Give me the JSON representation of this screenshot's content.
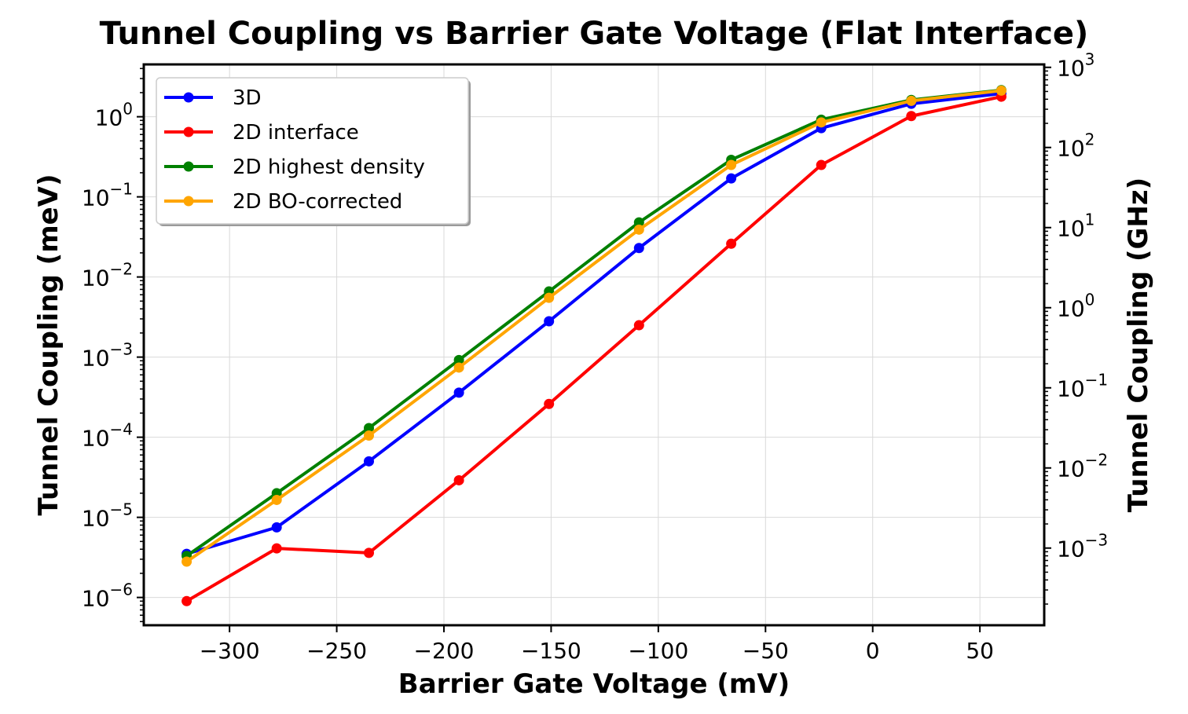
{
  "chart_data": {
    "type": "line",
    "title": "Tunnel Coupling vs Barrier Gate Voltage (Flat Interface)",
    "xlabel": "Barrier Gate Voltage (mV)",
    "ylabel": "Tunnel Coupling (meV)",
    "ylabel_right": "Tunnel Coupling (GHz)",
    "xlim": [
      -340,
      80
    ],
    "ylim": [
      4.5e-07,
      4.5
    ],
    "yscale": "log",
    "grid": true,
    "legend_position": "top-left",
    "x": [
      -320,
      -278,
      -235,
      -193,
      -151,
      -109,
      -66,
      -24,
      18,
      60
    ],
    "x_ticks": [
      {
        "value": -300,
        "label": "−300"
      },
      {
        "value": -250,
        "label": "−250"
      },
      {
        "value": -200,
        "label": "−200"
      },
      {
        "value": -150,
        "label": "−150"
      },
      {
        "value": -100,
        "label": "−100"
      },
      {
        "value": -50,
        "label": "−50"
      },
      {
        "value": 0,
        "label": "0"
      },
      {
        "value": 50,
        "label": "50"
      }
    ],
    "y_ticks": [
      {
        "exp": 0,
        "base": "10",
        "sup": "0"
      },
      {
        "exp": -1,
        "base": "10",
        "sup": "−1"
      },
      {
        "exp": -2,
        "base": "10",
        "sup": "−2"
      },
      {
        "exp": -3,
        "base": "10",
        "sup": "−3"
      },
      {
        "exp": -4,
        "base": "10",
        "sup": "−4"
      },
      {
        "exp": -5,
        "base": "10",
        "sup": "−5"
      },
      {
        "exp": -6,
        "base": "10",
        "sup": "−6"
      }
    ],
    "y_right_ticks": [
      {
        "exp": 3,
        "base": "10",
        "sup": "3"
      },
      {
        "exp": 2,
        "base": "10",
        "sup": "2"
      },
      {
        "exp": 1,
        "base": "10",
        "sup": "1"
      },
      {
        "exp": 0,
        "base": "10",
        "sup": "0"
      },
      {
        "exp": -1,
        "base": "10",
        "sup": "−1"
      },
      {
        "exp": -2,
        "base": "10",
        "sup": "−2"
      },
      {
        "exp": -3,
        "base": "10",
        "sup": "−3"
      }
    ],
    "series": [
      {
        "name": "3D",
        "color": "#0000ff",
        "values": [
          3.5e-06,
          7.5e-06,
          5e-05,
          0.00036,
          0.0028,
          0.023,
          0.17,
          0.72,
          1.45,
          1.95
        ]
      },
      {
        "name": "2D interface",
        "color": "#ff0000",
        "values": [
          9e-07,
          4.1e-06,
          3.6e-06,
          2.9e-05,
          0.00026,
          0.0025,
          0.026,
          0.25,
          1.02,
          1.78
        ]
      },
      {
        "name": "2D highest density",
        "color": "#008000",
        "values": [
          3.3e-06,
          2e-05,
          0.00013,
          0.00092,
          0.0066,
          0.048,
          0.29,
          0.92,
          1.62,
          2.15
        ]
      },
      {
        "name": "2D BO-corrected",
        "color": "#ffa500",
        "values": [
          2.8e-06,
          1.65e-05,
          0.000105,
          0.00074,
          0.0055,
          0.039,
          0.25,
          0.85,
          1.58,
          2.12
        ]
      }
    ]
  }
}
